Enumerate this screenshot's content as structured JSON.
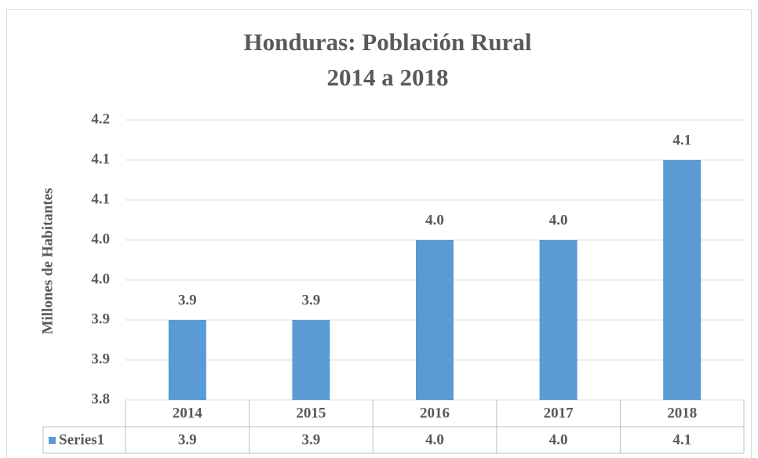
{
  "chart_data": {
    "type": "bar",
    "title": "Honduras: Población Rural",
    "subtitle": "2014 a 2018",
    "y_label": "Millones de Habitantes",
    "categories": [
      "2014",
      "2015",
      "2016",
      "2017",
      "2018"
    ],
    "series": [
      {
        "name": "Series1",
        "color": "#5b9bd5",
        "values": [
          3.9,
          3.9,
          4.0,
          4.0,
          4.1
        ],
        "value_labels": [
          "3.9",
          "3.9",
          "4.0",
          "4.0",
          "4.1"
        ]
      }
    ],
    "ylim": [
      3.8,
      4.15
    ],
    "yticks": [
      3.8,
      {
        "value": 3.85,
        "label": "3.9"
      },
      3.9,
      {
        "value": 3.95,
        "label": "4.0"
      },
      {
        "value": 4.0,
        "label": "4.0"
      },
      {
        "value": 4.05,
        "label": "4.1"
      },
      4.1,
      {
        "value": 4.15,
        "label": "4.2"
      }
    ],
    "grid": true,
    "data_table": true
  }
}
